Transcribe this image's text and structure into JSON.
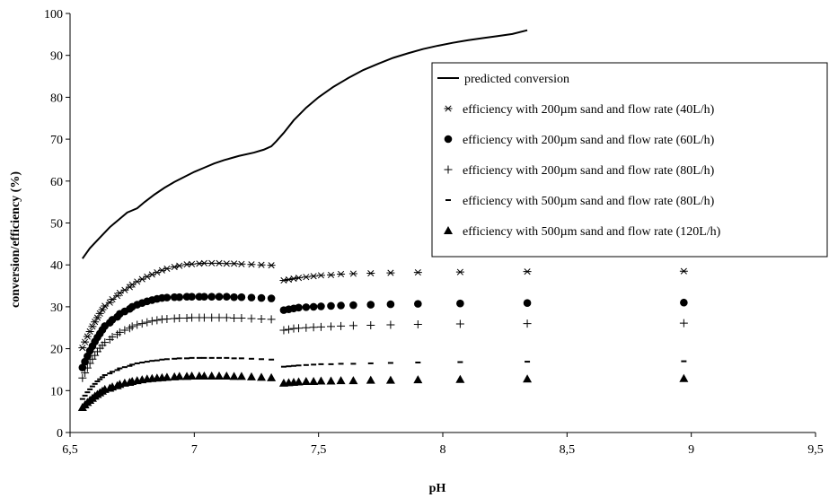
{
  "chart_data": {
    "type": "scatter",
    "title": "",
    "xlabel": "pH",
    "ylabel": "conversion/efficiency (%)",
    "xlim": [
      6.5,
      9.5
    ],
    "ylim": [
      0,
      100
    ],
    "x_ticks": [
      "6,5",
      "7",
      "7,5",
      "8",
      "8,5",
      "9",
      "9,5"
    ],
    "y_ticks": [
      "0",
      "10",
      "20",
      "30",
      "40",
      "50",
      "60",
      "70",
      "80",
      "90",
      "100"
    ],
    "grid": false,
    "legend_position": "right",
    "x": [
      6.55,
      6.56,
      6.57,
      6.58,
      6.59,
      6.6,
      6.61,
      6.62,
      6.63,
      6.64,
      6.66,
      6.67,
      6.69,
      6.7,
      6.72,
      6.74,
      6.75,
      6.77,
      6.79,
      6.81,
      6.83,
      6.85,
      6.87,
      6.89,
      6.92,
      6.94,
      6.97,
      6.99,
      7.02,
      7.04,
      7.07,
      7.1,
      7.13,
      7.16,
      7.19,
      7.23,
      7.27,
      7.31,
      7.36,
      7.38,
      7.4,
      7.42,
      7.45,
      7.48,
      7.51,
      7.55,
      7.59,
      7.64,
      7.71,
      7.79,
      7.9,
      8.07,
      8.34,
      8.97
    ],
    "series": [
      {
        "name": "predicted conversion",
        "style": "line",
        "x": [
          6.55,
          6.58,
          6.62,
          6.66,
          6.7,
          6.73,
          6.75,
          6.77,
          6.8,
          6.84,
          6.88,
          6.92,
          6.96,
          7.0,
          7.04,
          7.08,
          7.12,
          7.18,
          7.24,
          7.28,
          7.31,
          7.33,
          7.36,
          7.4,
          7.45,
          7.5,
          7.56,
          7.62,
          7.68,
          7.74,
          7.8,
          7.86,
          7.92,
          7.98,
          8.04,
          8.1,
          8.16,
          8.22,
          8.28,
          8.34
        ],
        "values": [
          41.5,
          44,
          46.5,
          49,
          51,
          52.5,
          53,
          53.5,
          55,
          56.8,
          58.4,
          59.8,
          61,
          62.2,
          63.2,
          64.2,
          65,
          66,
          66.8,
          67.5,
          68.3,
          69.5,
          71.5,
          74.5,
          77.5,
          80,
          82.5,
          84.6,
          86.5,
          88,
          89.4,
          90.5,
          91.5,
          92.3,
          93,
          93.6,
          94.1,
          94.6,
          95.1,
          96
        ]
      },
      {
        "name": "efficiency with 200µm sand and flow rate (40L/h)",
        "style": "asterisk",
        "values": [
          20.2,
          21.6,
          22.9,
          24.1,
          25.3,
          26.4,
          27.4,
          28.4,
          29.3,
          30.2,
          31.0,
          31.8,
          32.6,
          33.3,
          34.0,
          34.7,
          35.3,
          36.0,
          36.6,
          37.2,
          37.7,
          38.2,
          38.7,
          39.1,
          39.5,
          39.8,
          40.1,
          40.2,
          40.3,
          40.4,
          40.4,
          40.4,
          40.3,
          40.3,
          40.2,
          40.1,
          40.0,
          39.9,
          36.3,
          36.5,
          36.7,
          36.9,
          37.1,
          37.3,
          37.5,
          37.6,
          37.8,
          37.9,
          38.0,
          38.1,
          38.2,
          38.3,
          38.4,
          38.5
        ]
      },
      {
        "name": "efficiency with 200µm sand and flow rate (60L/h)",
        "style": "circle",
        "values": [
          15.5,
          16.9,
          18.2,
          19.5,
          20.6,
          21.7,
          22.7,
          23.6,
          24.5,
          25.4,
          26.2,
          26.9,
          27.6,
          28.3,
          28.9,
          29.5,
          30.0,
          30.5,
          30.9,
          31.3,
          31.6,
          31.9,
          32.1,
          32.2,
          32.3,
          32.3,
          32.4,
          32.4,
          32.4,
          32.4,
          32.4,
          32.4,
          32.4,
          32.3,
          32.3,
          32.2,
          32.1,
          32.0,
          29.2,
          29.4,
          29.6,
          29.8,
          29.9,
          30.0,
          30.1,
          30.2,
          30.3,
          30.4,
          30.5,
          30.6,
          30.7,
          30.8,
          30.9,
          31.0
        ]
      },
      {
        "name": "efficiency with 200µm sand and flow rate (80L/h)",
        "style": "plus",
        "values": [
          13.0,
          14.2,
          15.4,
          16.5,
          17.5,
          18.4,
          19.3,
          20.1,
          20.8,
          21.5,
          22.2,
          22.8,
          23.4,
          23.9,
          24.4,
          24.9,
          25.3,
          25.7,
          26.0,
          26.3,
          26.6,
          26.8,
          27.0,
          27.1,
          27.2,
          27.3,
          27.3,
          27.4,
          27.4,
          27.4,
          27.4,
          27.4,
          27.4,
          27.3,
          27.3,
          27.2,
          27.1,
          27.0,
          24.4,
          24.6,
          24.8,
          24.9,
          25.0,
          25.1,
          25.2,
          25.3,
          25.4,
          25.5,
          25.6,
          25.7,
          25.8,
          25.9,
          26.0,
          26.1
        ]
      },
      {
        "name": "efficiency with 500µm sand and flow rate (80L/h)",
        "style": "dash",
        "values": [
          8.0,
          8.8,
          9.6,
          10.3,
          11.0,
          11.6,
          12.2,
          12.7,
          13.2,
          13.7,
          14.1,
          14.5,
          14.9,
          15.3,
          15.6,
          15.9,
          16.2,
          16.5,
          16.7,
          16.9,
          17.1,
          17.2,
          17.4,
          17.5,
          17.6,
          17.7,
          17.7,
          17.8,
          17.8,
          17.8,
          17.8,
          17.8,
          17.8,
          17.7,
          17.7,
          17.6,
          17.5,
          17.4,
          15.7,
          15.8,
          15.9,
          16.0,
          16.1,
          16.2,
          16.3,
          16.3,
          16.4,
          16.4,
          16.5,
          16.6,
          16.7,
          16.8,
          16.9,
          17.0
        ]
      },
      {
        "name": "efficiency with 500µm sand and flow rate (120L/h)",
        "style": "triangle",
        "values": [
          6.0,
          6.6,
          7.2,
          7.7,
          8.2,
          8.7,
          9.1,
          9.5,
          9.9,
          10.3,
          10.6,
          10.9,
          11.2,
          11.5,
          11.8,
          12.0,
          12.2,
          12.4,
          12.6,
          12.8,
          12.9,
          13.0,
          13.1,
          13.2,
          13.3,
          13.4,
          13.4,
          13.5,
          13.5,
          13.5,
          13.5,
          13.5,
          13.5,
          13.4,
          13.4,
          13.3,
          13.2,
          13.1,
          11.8,
          11.9,
          12.0,
          12.1,
          12.2,
          12.2,
          12.3,
          12.3,
          12.4,
          12.4,
          12.5,
          12.5,
          12.6,
          12.7,
          12.8,
          12.9
        ]
      }
    ]
  }
}
